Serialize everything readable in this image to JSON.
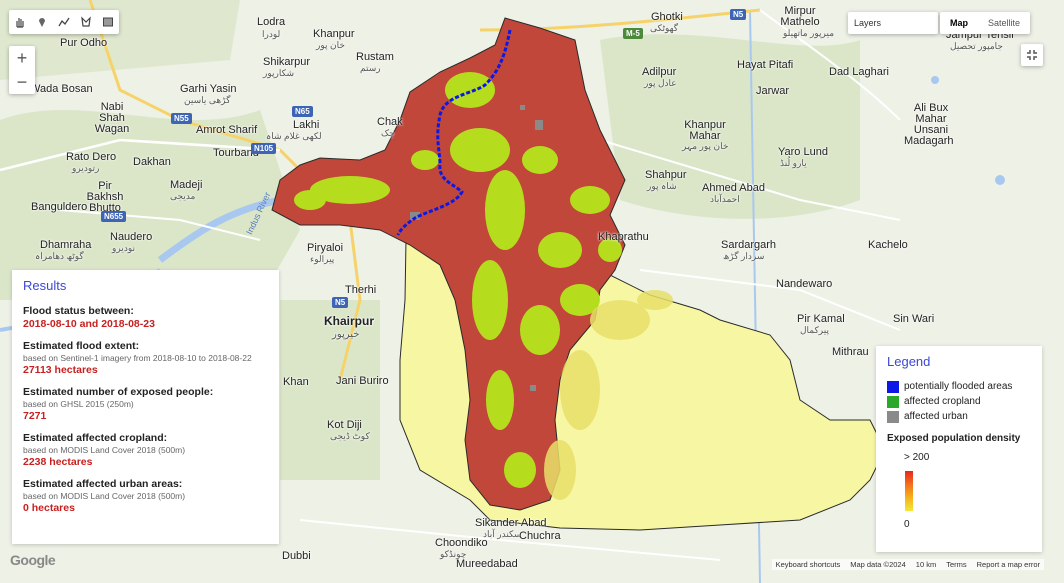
{
  "toolbar": {
    "tools": [
      "hand-icon",
      "marker-icon",
      "polyline-icon",
      "polygon-icon",
      "rectangle-icon"
    ]
  },
  "zoom": {
    "in": "+",
    "out": "−"
  },
  "layers": {
    "label": "Layers"
  },
  "map_type": {
    "map": "Map",
    "satellite": "Satellite",
    "selected": "Map"
  },
  "places": [
    {
      "name": "Lodra",
      "urdu": "لودرا"
    },
    {
      "name": "Khanpur",
      "urdu": "خان پور"
    },
    {
      "name": "Pur Odho"
    },
    {
      "name": "Shikarpur",
      "urdu": "شکارپور"
    },
    {
      "name": "Rustam",
      "urdu": "رستم"
    },
    {
      "name": "Wada Bosan"
    },
    {
      "name": "Garhi Yasin",
      "urdu": "گڑھی یاسین"
    },
    {
      "name": "Nabi Shah Wagan"
    },
    {
      "name": "Amrot Sharif"
    },
    {
      "name": "Lakhi",
      "urdu": "لکھی غلام شاہ"
    },
    {
      "name": "Chak",
      "urdu": "چک"
    },
    {
      "name": "Rato Dero",
      "urdu": "رتودیرو"
    },
    {
      "name": "Dakhan"
    },
    {
      "name": "Tourband"
    },
    {
      "name": "Pir Bakhsh Bhutto"
    },
    {
      "name": "Madeji",
      "urdu": "مدیجی"
    },
    {
      "name": "Banguldero"
    },
    {
      "name": "Naudero",
      "urdu": "نودیرو"
    },
    {
      "name": "Dhamraha",
      "urdu": "گوٹھ دھامراہ"
    },
    {
      "name": "Indus River"
    },
    {
      "name": "Piryaloi",
      "urdu": "پیرالوء"
    },
    {
      "name": "Therhi"
    },
    {
      "name": "Khairpur",
      "urdu": "خیرپور"
    },
    {
      "name": "Jani Buriro"
    },
    {
      "name": "Kot Diji",
      "urdu": "کوٹ ڈیجی"
    },
    {
      "name": "Ghotki",
      "urdu": "گھوٹکی"
    },
    {
      "name": "Mirpur Mathelo",
      "urdu": "میرپور ماتھیلو"
    },
    {
      "name": "Jampur Tensil",
      "urdu": "جامپور تحصیل"
    },
    {
      "name": "Adilpur",
      "urdu": "عادل پور"
    },
    {
      "name": "Hayat Pitafi"
    },
    {
      "name": "Dad Laghari"
    },
    {
      "name": "Jarwar"
    },
    {
      "name": "Ali Bux Mahar Unsani"
    },
    {
      "name": "Khanpur Mahar",
      "urdu": "خان پور مہر"
    },
    {
      "name": "Madagarh"
    },
    {
      "name": "Yaro Lund",
      "urdu": "یارو لُنڈ"
    },
    {
      "name": "Shahpur",
      "urdu": "شاہ پور"
    },
    {
      "name": "Ahmed Abad",
      "urdu": "احمدآباد"
    },
    {
      "name": "Sardargarh",
      "urdu": "سردار گڑھ"
    },
    {
      "name": "Kachelo"
    },
    {
      "name": "Nandewaro"
    },
    {
      "name": "Pir Kamal",
      "urdu": "پیرکمال"
    },
    {
      "name": "Sin Wari"
    },
    {
      "name": "Mithrau"
    },
    {
      "name": "Sikander Abad",
      "urdu": "سکندر آباد"
    },
    {
      "name": "Choondiko",
      "urdu": "چونڈکو"
    },
    {
      "name": "Chuchra"
    },
    {
      "name": "Mureedabad"
    },
    {
      "name": "Dubbi"
    },
    {
      "name": "Khan"
    },
    {
      "name": "Khaprathu"
    }
  ],
  "roads": [
    "N5",
    "M-5",
    "N55",
    "N65",
    "N105",
    "N655"
  ],
  "results": {
    "title": "Results",
    "flood_status": {
      "heading": "Flood status between:",
      "value": "2018-08-10 and 2018-08-23"
    },
    "flood_extent": {
      "heading": "Estimated flood extent:",
      "source": "based on Sentinel-1 imagery from 2018-08-10 to 2018-08-22",
      "value": "27113 hectares"
    },
    "exposed_people": {
      "heading": "Estimated number of exposed people:",
      "source": "based on GHSL 2015 (250m)",
      "value": "7271"
    },
    "cropland": {
      "heading": "Estimated affected cropland:",
      "source": "based on MODIS Land Cover 2018 (500m)",
      "value": "2238 hectares"
    },
    "urban": {
      "heading": "Estimated affected urban areas:",
      "source": "based on MODIS Land Cover 2018 (500m)",
      "value": "0 hectares"
    }
  },
  "legend": {
    "title": "Legend",
    "items": [
      {
        "label": "potentially flooded areas",
        "color": "#0c18e8"
      },
      {
        "label": "affected cropland",
        "color": "#2aa82a"
      },
      {
        "label": "affected urban",
        "color": "#8a8a8a"
      }
    ],
    "density_title": "Exposed population density",
    "max_label": "> 200",
    "min_label": "0"
  },
  "footer": {
    "logo": "Google",
    "shortcuts": "Keyboard shortcuts",
    "map_data": "Map data ©2024",
    "scale": "10 km",
    "terms": "Terms",
    "report": "Report a map error"
  },
  "colors": {
    "region_red": "#c0473a",
    "region_yellow": "#f7f7a3",
    "crop_green": "#b5e61d",
    "water": "#a9c8ef"
  }
}
